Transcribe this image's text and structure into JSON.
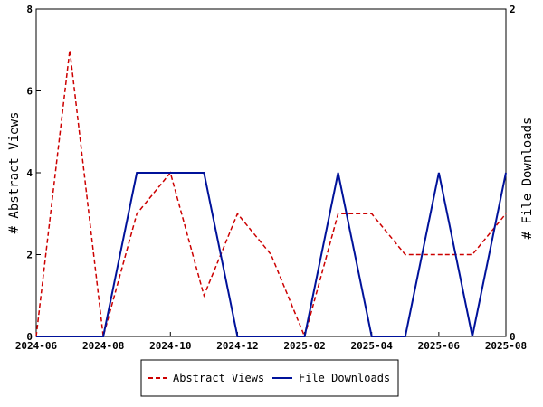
{
  "chart_data": {
    "type": "line",
    "x_dates": [
      "2024-06",
      "2024-07",
      "2024-08",
      "2024-09",
      "2024-10",
      "2024-11",
      "2024-12",
      "2025-01",
      "2025-02",
      "2025-03",
      "2025-04",
      "2025-05",
      "2025-06",
      "2025-07",
      "2025-08"
    ],
    "x_tick_labels": [
      "2024-06",
      "2024-08",
      "2024-10",
      "2024-12",
      "2025-02",
      "2025-04",
      "2025-06",
      "2025-08"
    ],
    "xlim": [
      "2024-06",
      "2025-08"
    ],
    "ylabel_left": "# Abstract Views",
    "ylabel_right": "# File Downloads",
    "ylim_left": [
      0,
      8
    ],
    "ylim_right": [
      0,
      2
    ],
    "y_ticks_left": [
      "0",
      "2",
      "4",
      "6",
      "8"
    ],
    "y_ticks_right": [
      "0",
      "2"
    ],
    "grid": false,
    "legend_position": "bottom-center",
    "series": [
      {
        "name": "Abstract Views",
        "axis": "left",
        "color": "#cc0000",
        "style": "dashed",
        "values": [
          0,
          7,
          0,
          3,
          4,
          1,
          3,
          2,
          0,
          3,
          3,
          2,
          2,
          2,
          3
        ]
      },
      {
        "name": "File Downloads",
        "axis": "right",
        "color": "#00129a",
        "style": "solid",
        "values": [
          0,
          0,
          0,
          1,
          1,
          1,
          0,
          0,
          0,
          1,
          0,
          0,
          1,
          0,
          1
        ]
      }
    ]
  }
}
